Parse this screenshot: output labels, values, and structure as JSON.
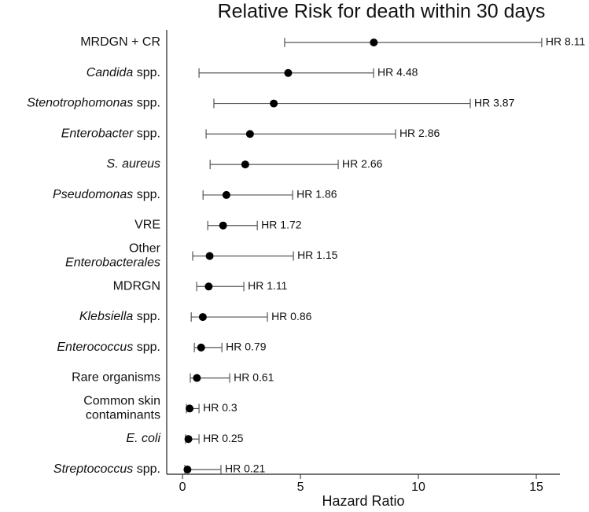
{
  "chart_data": {
    "type": "forest",
    "title": "Relative Risk for death within 30 days",
    "x_label": "Hazard Ratio",
    "categories": [
      [
        [
          {
            "text": "MRDGN + CR"
          }
        ]
      ],
      [
        [
          {
            "text": "Candida",
            "italic": true
          },
          {
            "text": " spp."
          }
        ]
      ],
      [
        [
          {
            "text": "Stenotrophomonas",
            "italic": true
          },
          {
            "text": " spp."
          }
        ]
      ],
      [
        [
          {
            "text": "Enterobacter",
            "italic": true
          },
          {
            "text": " spp."
          }
        ]
      ],
      [
        [
          {
            "text": "S. aureus",
            "italic": true
          }
        ]
      ],
      [
        [
          {
            "text": "Pseudomonas",
            "italic": true
          },
          {
            "text": " spp."
          }
        ]
      ],
      [
        [
          {
            "text": "VRE"
          }
        ]
      ],
      [
        [
          {
            "text": "Other"
          }
        ],
        [
          {
            "text": "Enterobacterales",
            "italic": true
          }
        ]
      ],
      [
        [
          {
            "text": "MDRGN"
          }
        ]
      ],
      [
        [
          {
            "text": "Klebsiella",
            "italic": true
          },
          {
            "text": " spp."
          }
        ]
      ],
      [
        [
          {
            "text": "Enterococcus",
            "italic": true
          },
          {
            "text": " spp."
          }
        ]
      ],
      [
        [
          {
            "text": "Rare organisms"
          }
        ]
      ],
      [
        [
          {
            "text": "Common skin"
          }
        ],
        [
          {
            "text": "contaminants"
          }
        ]
      ],
      [
        [
          {
            "text": "E. coli",
            "italic": true
          }
        ]
      ],
      [
        [
          {
            "text": "Streptococcus",
            "italic": true
          },
          {
            "text": " spp."
          }
        ]
      ]
    ],
    "values": [
      8.11,
      4.48,
      3.87,
      2.86,
      2.66,
      1.86,
      1.72,
      1.15,
      1.11,
      0.86,
      0.79,
      0.61,
      0.3,
      0.25,
      0.21
    ],
    "value_labels": [
      "HR 8.11",
      "HR 4.48",
      "HR 3.87",
      "HR 2.86",
      "HR 2.66",
      "HR 1.86",
      "HR 1.72",
      "HR 1.15",
      "HR 1.11",
      "HR 0.86",
      "HR 0.79",
      "HR 0.61",
      "HR 0.3",
      "HR 0.25",
      "HR 0.21"
    ],
    "lower": [
      4.33,
      0.7,
      1.33,
      1.0,
      1.17,
      0.87,
      1.07,
      0.43,
      0.6,
      0.37,
      0.5,
      0.33,
      0.17,
      0.13,
      0.1
    ],
    "upper": [
      15.23,
      8.1,
      12.2,
      9.03,
      6.6,
      4.67,
      3.17,
      4.7,
      2.6,
      3.6,
      1.67,
      2.0,
      0.7,
      0.7,
      1.63
    ],
    "xlim": [
      -0.67,
      16
    ],
    "xticks": [
      0,
      5,
      10,
      15
    ],
    "color": "#000000",
    "whisker_color": "#555555"
  }
}
